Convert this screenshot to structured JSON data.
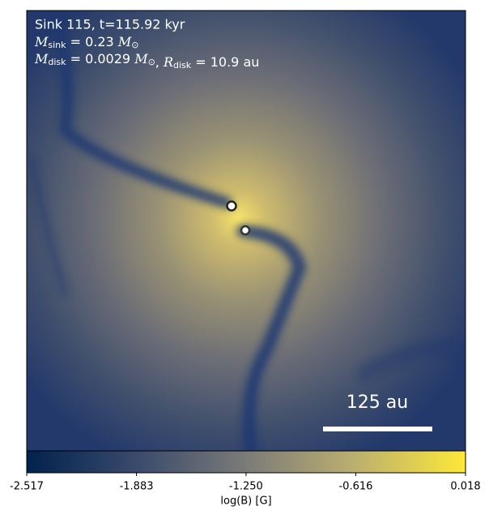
{
  "chart_data": {
    "type": "image-map",
    "annotations": [
      {
        "text": "Sink 115, t=115.92 kyr"
      },
      {
        "parts": [
          {
            "var": "M",
            "sub": "sink",
            "rest": " = 0.23 ",
            "unit": "M",
            "unit_sub": "⊙"
          }
        ]
      },
      {
        "parts": [
          {
            "var": "M",
            "sub": "disk",
            "rest": " = 0.0029 ",
            "unit": "M",
            "unit_sub": "⊙",
            "sep": ", "
          },
          {
            "var": "R",
            "sub": "disk",
            "rest": " = 10.9 au"
          }
        ]
      }
    ],
    "scale_bar": "125 au",
    "colorbar": {
      "label": "log(B) [G]",
      "clim": [
        -2.517,
        0.018
      ],
      "ticks": [
        -2.517,
        -1.883,
        {
          "value": -1.25,
          "label": "-1.250"
        },
        -0.616,
        0.018
      ],
      "colors": [
        "#00224e",
        "#3a4a6c",
        "#7b7b78",
        "#bcb06f",
        "#fee838"
      ]
    }
  }
}
